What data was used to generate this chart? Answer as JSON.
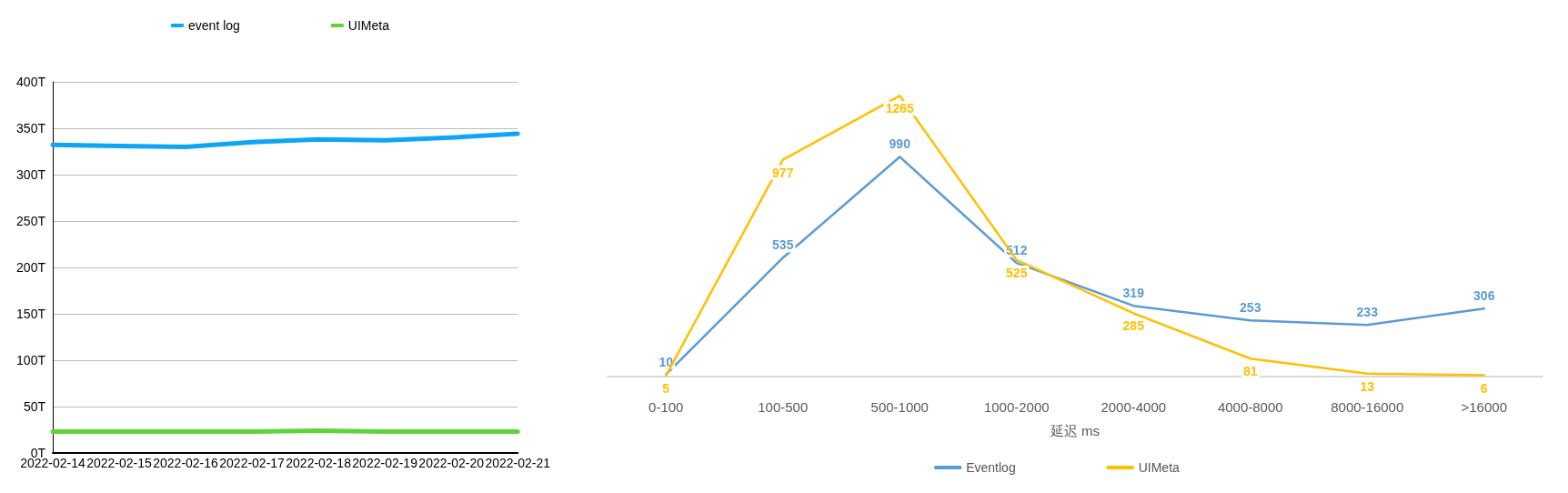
{
  "chart_data": [
    {
      "type": "line",
      "categories": [
        "2022-02-14",
        "2022-02-15",
        "2022-02-16",
        "2022-02-17",
        "2022-02-18",
        "2022-02-19",
        "2022-02-20",
        "2022-02-21"
      ],
      "series": [
        {
          "name": "event log",
          "color": "#0ea5f7",
          "values": [
            332,
            331,
            330,
            335,
            338,
            337,
            340,
            344
          ]
        },
        {
          "name": "UIMeta",
          "color": "#5fd33a",
          "values": [
            23,
            23,
            23,
            23,
            24,
            23,
            23,
            23
          ]
        }
      ],
      "ylim": [
        0,
        400
      ],
      "yticks": [
        {
          "value": 0,
          "label": "0T"
        },
        {
          "value": 50,
          "label": "50T"
        },
        {
          "value": 100,
          "label": "100T"
        },
        {
          "value": 150,
          "label": "150T"
        },
        {
          "value": 200,
          "label": "200T"
        },
        {
          "value": 250,
          "label": "250T"
        },
        {
          "value": 300,
          "label": "300T"
        },
        {
          "value": 350,
          "label": "350T"
        },
        {
          "value": 400,
          "label": "400T"
        }
      ],
      "grid": "y",
      "legend": "top",
      "marker": "none",
      "line_style": "solid"
    },
    {
      "type": "line",
      "xlabel": "延迟 ms",
      "categories": [
        "0-100",
        "100-500",
        "500-1000",
        "1000-2000",
        "2000-4000",
        "4000-8000",
        "8000-16000",
        ">16000"
      ],
      "series": [
        {
          "name": "Eventlog",
          "color": "#5b9bd5",
          "values": [
            10,
            535,
            990,
            512,
            319,
            253,
            233,
            306
          ]
        },
        {
          "name": "UIMeta",
          "color": "#ffc000",
          "values": [
            5,
            977,
            1265,
            525,
            285,
            81,
            13,
            6
          ]
        }
      ],
      "data_labels": true,
      "grid": false,
      "legend": "bottom",
      "marker": "none",
      "line_style": "solid"
    }
  ]
}
